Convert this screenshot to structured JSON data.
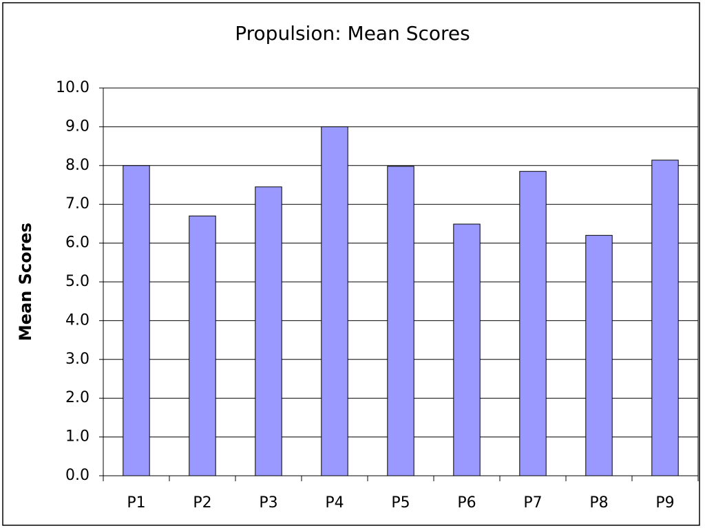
{
  "chart_data": {
    "type": "bar",
    "title": "Propulsion: Mean Scores",
    "y_label": "Mean Scores",
    "categories": [
      "P1",
      "P2",
      "P3",
      "P4",
      "P5",
      "P6",
      "P7",
      "P8",
      "P9"
    ],
    "values": [
      8.0,
      6.7,
      7.45,
      9.0,
      7.98,
      6.49,
      7.85,
      6.2,
      8.14
    ],
    "color": "#9999ff",
    "ylim": [
      0,
      10
    ],
    "yticks": [
      {
        "value": 0,
        "label": "0.0"
      },
      {
        "value": 1,
        "label": "1.0"
      },
      {
        "value": 2,
        "label": "2.0"
      },
      {
        "value": 3,
        "label": "3.0"
      },
      {
        "value": 4,
        "label": "4.0"
      },
      {
        "value": 5,
        "label": "5.0"
      },
      {
        "value": 6,
        "label": "6.0"
      },
      {
        "value": 7,
        "label": "7.0"
      },
      {
        "value": 8,
        "label": "8.0"
      },
      {
        "value": 9,
        "label": "9.0"
      },
      {
        "value": 10,
        "label": "10.0"
      }
    ],
    "grid": true
  }
}
